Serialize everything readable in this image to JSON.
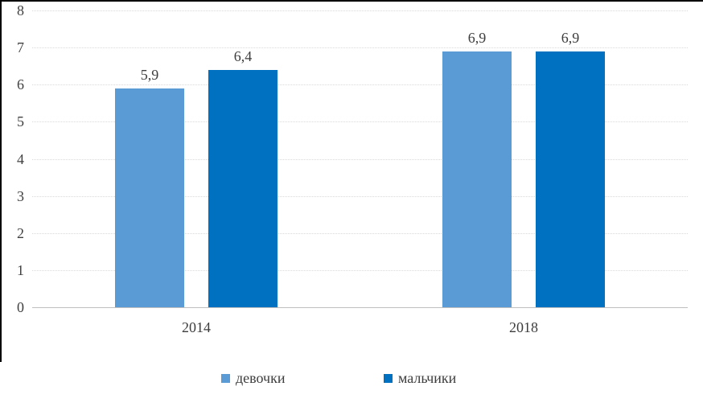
{
  "chart_data": {
    "type": "bar",
    "title": "",
    "xlabel": "",
    "ylabel": "",
    "categories": [
      "2014",
      "2018"
    ],
    "series": [
      {
        "name": "девочки",
        "color": "#5B9BD5",
        "values": [
          5.9,
          6.9
        ],
        "value_labels": [
          "5,9",
          "6,9"
        ]
      },
      {
        "name": "мальчики",
        "color": "#0070C0",
        "values": [
          6.4,
          6.9
        ],
        "value_labels": [
          "6,4",
          "6,9"
        ]
      }
    ],
    "ylim": [
      0,
      8
    ],
    "yticks": [
      "0",
      "1",
      "2",
      "3",
      "4",
      "5",
      "6",
      "7",
      "8"
    ],
    "grid": true,
    "gridline_color": "#D9D9D9",
    "axis_line_color": "#BFBFBF",
    "text_color": "#404040",
    "decimal_separator": ",",
    "legend_position": "bottom"
  },
  "page": {
    "top_rule_color": "#000000",
    "left_rule_color": "#000000",
    "background_color": "#FFFFFF"
  }
}
